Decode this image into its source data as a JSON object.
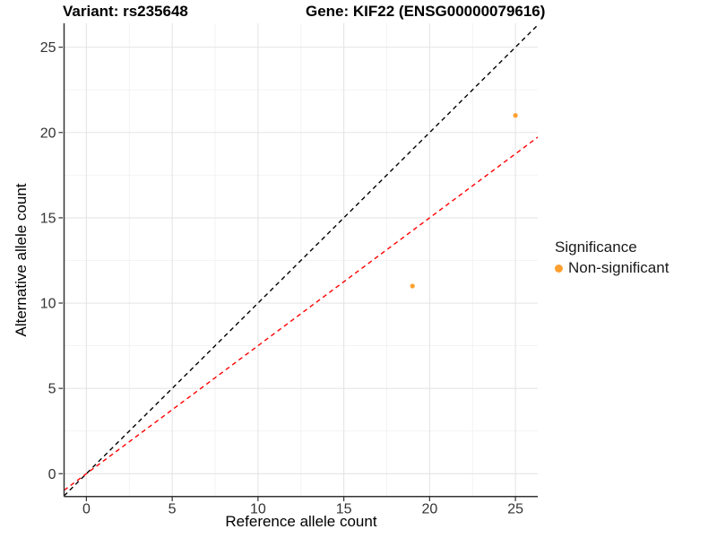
{
  "header": {
    "variant_title": "Variant: rs235648",
    "gene_title": "Gene: KIF22 (ENSG00000079616)"
  },
  "chart_data": {
    "type": "scatter",
    "title_left": "Variant: rs235648",
    "title_right": "Gene: KIF22 (ENSG00000079616)",
    "xlabel": "Reference allele count",
    "ylabel": "Alternative allele count",
    "xlim": [
      -1.3,
      26.3
    ],
    "ylim": [
      -1.3,
      26.4
    ],
    "x_ticks": [
      0,
      5,
      10,
      15,
      20,
      25
    ],
    "y_ticks": [
      0,
      5,
      10,
      15,
      20,
      25
    ],
    "x_minor_ticks": [
      2.5,
      7.5,
      12.5,
      17.5,
      22.5
    ],
    "y_minor_ticks": [
      2.5,
      7.5,
      12.5,
      17.5,
      22.5
    ],
    "grid": true,
    "points": [
      {
        "x": 19,
        "y": 11,
        "series": "Non-significant"
      },
      {
        "x": 25,
        "y": 21,
        "series": "Non-significant"
      }
    ],
    "lines": [
      {
        "name": "identity-line",
        "slope": 1,
        "intercept": 0,
        "color": "#000000",
        "style": "dashed"
      },
      {
        "name": "allelic-ratio-line",
        "slope": 0.75,
        "intercept": 0,
        "color": "#ff0000",
        "style": "dashed"
      }
    ],
    "legend": {
      "title": "Significance",
      "position": "right",
      "entries": [
        {
          "label": "Non-significant",
          "color": "#FFA030"
        }
      ]
    },
    "colors": {
      "point": "#FFA030",
      "major_grid": "#e5e5e5",
      "minor_grid": "#f2f2f2",
      "axis_line": "#333333",
      "tick_text": "#333333",
      "background": "#ffffff"
    }
  }
}
